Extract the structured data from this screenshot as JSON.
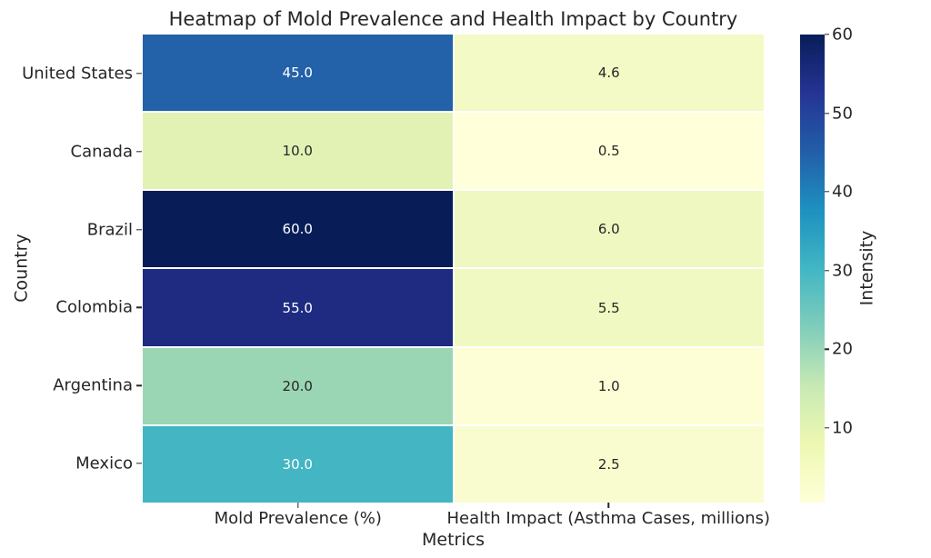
{
  "chart_data": {
    "type": "heatmap",
    "title": "Heatmap of Mold Prevalence and Health Impact by Country",
    "xlabel": "Metrics",
    "ylabel": "Country",
    "rows": [
      "United States",
      "Canada",
      "Brazil",
      "Colombia",
      "Argentina",
      "Mexico"
    ],
    "columns": [
      "Mold Prevalence (%)",
      "Health Impact (Asthma Cases, millions)"
    ],
    "values": [
      [
        45.0,
        4.6
      ],
      [
        10.0,
        0.5
      ],
      [
        60.0,
        6.0
      ],
      [
        55.0,
        5.5
      ],
      [
        20.0,
        1.0
      ],
      [
        30.0,
        2.5
      ]
    ],
    "labels": [
      [
        "45.0",
        "4.6"
      ],
      [
        "10.0",
        "0.5"
      ],
      [
        "60.0",
        "6.0"
      ],
      [
        "55.0",
        "5.5"
      ],
      [
        "20.0",
        "1.0"
      ],
      [
        "30.0",
        "2.5"
      ]
    ],
    "cell_colors": [
      [
        "#2361a8",
        "#f3fac5"
      ],
      [
        "#e2f2b5",
        "#ffffd9"
      ],
      [
        "#081d58",
        "#eff8c0"
      ],
      [
        "#1e2b81",
        "#f0f9c1"
      ],
      [
        "#9ad6b4",
        "#fdfed6"
      ],
      [
        "#43b5c3",
        "#f9fcce"
      ]
    ],
    "text_colors": [
      [
        "#ffffff",
        "#262626"
      ],
      [
        "#262626",
        "#262626"
      ],
      [
        "#ffffff",
        "#262626"
      ],
      [
        "#ffffff",
        "#262626"
      ],
      [
        "#262626",
        "#262626"
      ],
      [
        "#ffffff",
        "#262626"
      ]
    ],
    "colormap": "YlGnBu",
    "grid_line_color": "#ffffff",
    "text_color": "#262626",
    "background": "#ffffff",
    "colorbar": {
      "label": "Intensity",
      "vmin": 0.5,
      "vmax": 60,
      "ticks": [
        10,
        20,
        30,
        40,
        50,
        60
      ],
      "gradient_stops": [
        {
          "pos": 0,
          "color": "#ffffd9"
        },
        {
          "pos": 12.5,
          "color": "#edf8b1"
        },
        {
          "pos": 25,
          "color": "#c7e9b4"
        },
        {
          "pos": 37.5,
          "color": "#7fcdbb"
        },
        {
          "pos": 50,
          "color": "#41b6c4"
        },
        {
          "pos": 62.5,
          "color": "#1d91c0"
        },
        {
          "pos": 75,
          "color": "#225ea8"
        },
        {
          "pos": 87.5,
          "color": "#253494"
        },
        {
          "pos": 100,
          "color": "#081d58"
        }
      ]
    }
  }
}
